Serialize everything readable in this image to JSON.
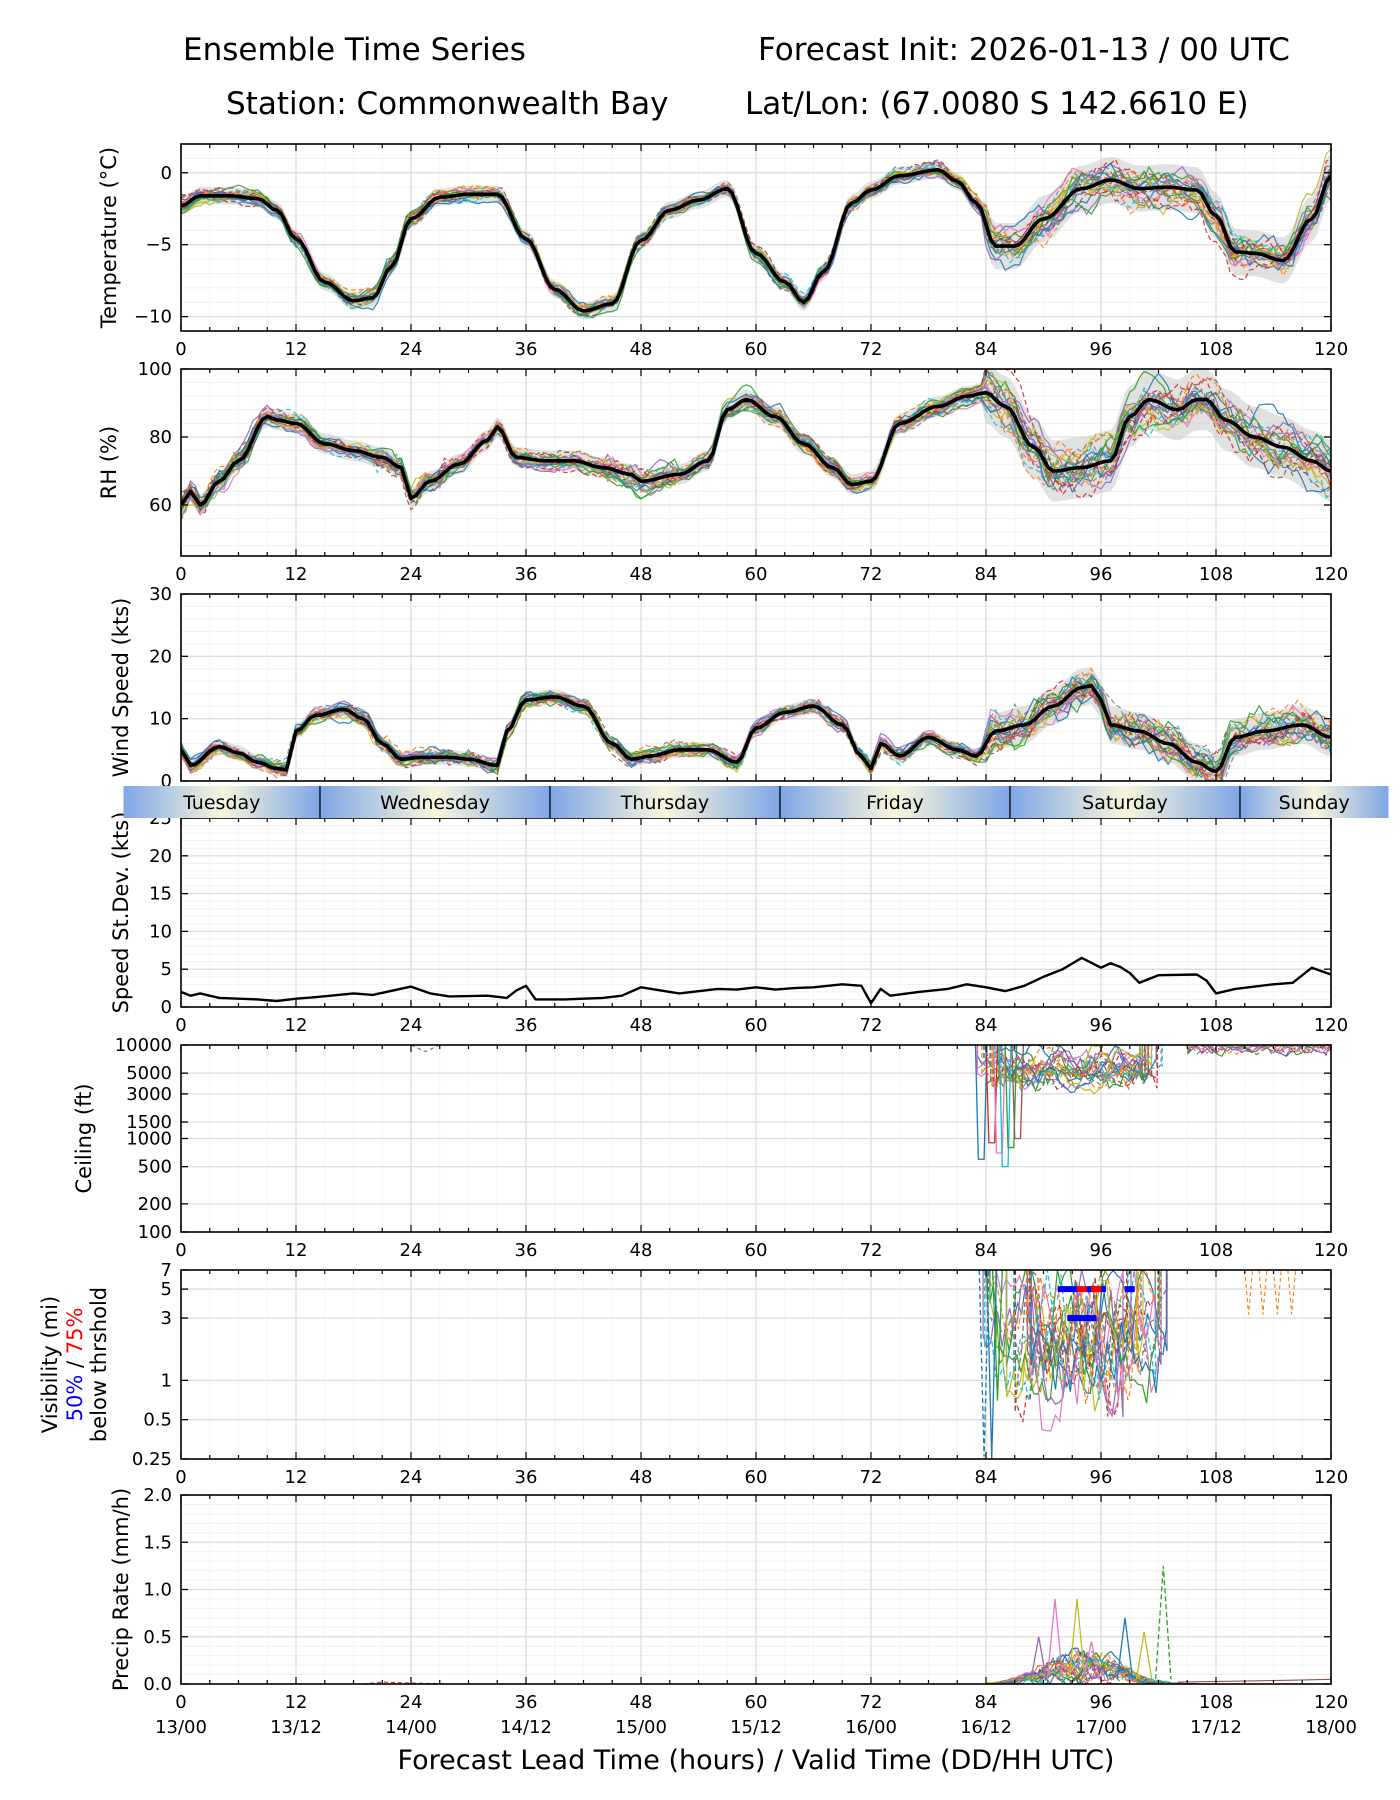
{
  "header": {
    "title": "Ensemble Time Series",
    "init": "Forecast Init: 2026-01-13 / 00 UTC",
    "station": "Station: Commonwealth Bay",
    "latlon": "Lat/Lon: (67.0080 S 142.6610 E)"
  },
  "day_strip": {
    "days": [
      "Tuesday",
      "Wednesday",
      "Thursday",
      "Friday",
      "Saturday",
      "Sunday"
    ]
  },
  "colors": {
    "members": [
      "#1f77b4",
      "#ff7f0e",
      "#2ca02c",
      "#d62728",
      "#9467bd",
      "#8c564b",
      "#e377c2",
      "#7f7f7f",
      "#bcbd22",
      "#17becf"
    ],
    "mean": "#000000",
    "spread": "#c8c8c8",
    "vis50": "#0000ff",
    "vis75": "#ff0000",
    "day_blue": "#7ea6e6",
    "day_cream": "#f8f6dc"
  },
  "chart_data": [
    {
      "id": "temperature",
      "type": "line",
      "title": "",
      "ylabel": "Temperature (°C)",
      "xlabel": "",
      "xlim": [
        0,
        120
      ],
      "ylim": [
        -11,
        2
      ],
      "yticks": [
        0,
        -5,
        -10
      ],
      "ytick_labels": [
        "0",
        "−5",
        "−10"
      ],
      "xticks": [
        0,
        12,
        24,
        36,
        48,
        60,
        72,
        84,
        96,
        108,
        120
      ],
      "xtick_labels": [
        "0",
        "12",
        "24",
        "36",
        "48",
        "60",
        "72",
        "84",
        "96",
        "108",
        "120"
      ],
      "mean_series": {
        "x": [
          0,
          2,
          5,
          8,
          10,
          12,
          15,
          18,
          20,
          22,
          24,
          27,
          30,
          33,
          36,
          39,
          42,
          45,
          48,
          51,
          54,
          57,
          60,
          63,
          65,
          67,
          70,
          72,
          75,
          79,
          81,
          83,
          85,
          87,
          90,
          94,
          97,
          100,
          103,
          106,
          108,
          110,
          112,
          115,
          118,
          120
        ],
        "y": [
          -2.3,
          -1.6,
          -1.6,
          -1.8,
          -2.6,
          -4.6,
          -7.6,
          -8.9,
          -8.7,
          -6.5,
          -3.2,
          -1.7,
          -1.5,
          -1.5,
          -4.6,
          -8.1,
          -9.6,
          -9.1,
          -4.7,
          -2.6,
          -1.9,
          -1.1,
          -5.6,
          -7.6,
          -9.0,
          -6.9,
          -2.1,
          -1.2,
          -0.2,
          0.2,
          -0.6,
          -2.1,
          -5.1,
          -5.1,
          -3.2,
          -1.1,
          -0.5,
          -1.1,
          -1.0,
          -1.2,
          -3.0,
          -5.5,
          -5.6,
          -6.1,
          -3.2,
          -0.2
        ]
      },
      "spread": 0.6,
      "spread_wide_from": 84,
      "spread_wide": 1.6
    },
    {
      "id": "rh",
      "type": "line",
      "title": "",
      "ylabel": "RH (%)",
      "xlabel": "",
      "xlim": [
        0,
        120
      ],
      "ylim": [
        45,
        100
      ],
      "yticks": [
        60,
        80,
        100
      ],
      "ytick_labels": [
        "60",
        "80",
        "100"
      ],
      "xticks": [
        0,
        12,
        24,
        36,
        48,
        60,
        72,
        84,
        96,
        108,
        120
      ],
      "xtick_labels": [
        "0",
        "12",
        "24",
        "36",
        "48",
        "60",
        "72",
        "84",
        "96",
        "108",
        "120"
      ],
      "mean_series": {
        "x": [
          0,
          1,
          2,
          4,
          6,
          9,
          10,
          12,
          15,
          18,
          21,
          23,
          24,
          26,
          29,
          32,
          33,
          35,
          38,
          41,
          44,
          47,
          48,
          52,
          55,
          57,
          59,
          62,
          65,
          68,
          70,
          72,
          75,
          79,
          82,
          84,
          86,
          89,
          91,
          94,
          97,
          99,
          101,
          104,
          106,
          107,
          109,
          112,
          115,
          118,
          120
        ],
        "y": [
          60,
          64,
          60,
          67,
          73,
          86,
          85,
          84,
          78,
          76,
          74,
          71,
          62,
          67,
          72,
          79,
          83,
          74,
          73,
          73,
          71,
          69,
          67,
          69,
          73,
          88,
          91,
          86,
          78,
          71,
          66,
          67,
          84,
          89,
          92,
          93,
          89,
          77,
          70,
          71,
          73,
          86,
          91,
          88,
          91,
          91,
          85,
          80,
          77,
          73,
          70
        ]
      },
      "spread": 3,
      "spread_wide_from": 84,
      "spread_wide": 9
    },
    {
      "id": "wind",
      "type": "line",
      "title": "",
      "ylabel": "Wind Speed (kts)",
      "xlabel": "",
      "xlim": [
        0,
        120
      ],
      "ylim": [
        0,
        30
      ],
      "yticks": [
        0,
        10,
        20,
        30
      ],
      "ytick_labels": [
        "0",
        "10",
        "20",
        "30"
      ],
      "xticks": [
        0,
        12,
        24,
        36,
        48,
        60,
        72,
        84,
        96,
        108,
        120
      ],
      "xtick_labels": [
        "0",
        "12",
        "24",
        "36",
        "48",
        "60",
        "72",
        "84",
        "96",
        "108",
        "120"
      ],
      "mean_series": {
        "x": [
          0,
          1,
          4,
          6,
          8,
          10,
          11,
          12,
          14,
          17,
          19,
          21,
          23,
          25,
          28,
          30,
          33,
          34,
          36,
          39,
          42,
          45,
          47,
          49,
          52,
          55,
          58,
          60,
          63,
          66,
          69,
          71,
          72,
          73,
          75,
          78,
          81,
          83,
          85,
          88,
          91,
          94,
          95,
          96,
          97,
          100,
          103,
          106,
          108,
          110,
          113,
          117,
          120
        ],
        "y": [
          5,
          2.5,
          5.5,
          4.5,
          3,
          2,
          1.8,
          8,
          10.5,
          11.5,
          10,
          6,
          3.5,
          3.8,
          3.8,
          3.5,
          2.5,
          8,
          13,
          13.5,
          12,
          6,
          3.5,
          4,
          5,
          5,
          3,
          8.5,
          11,
          12,
          9,
          4,
          2,
          6,
          4,
          7,
          5,
          4,
          8,
          9,
          12,
          15,
          15.3,
          13,
          9,
          8,
          6,
          3,
          1.5,
          7,
          8,
          9,
          7
        ]
      },
      "spread": 1.2,
      "spread_wide_from": 84,
      "spread_wide": 3
    },
    {
      "id": "speed_stdev",
      "type": "line",
      "title": "",
      "ylabel": "Speed St.Dev. (kts)",
      "xlabel": "",
      "xlim": [
        0,
        120
      ],
      "ylim": [
        0,
        25
      ],
      "yticks": [
        0,
        5,
        10,
        15,
        20,
        25
      ],
      "ytick_labels": [
        "0",
        "5",
        "10",
        "15",
        "20",
        "25"
      ],
      "xticks": [
        0,
        12,
        24,
        36,
        48,
        60,
        72,
        84,
        96,
        108,
        120
      ],
      "xtick_labels": [
        "0",
        "12",
        "24",
        "36",
        "48",
        "60",
        "72",
        "84",
        "96",
        "108",
        "120"
      ],
      "mean_series": {
        "x": [
          0,
          1,
          2,
          4,
          8,
          10,
          12,
          14,
          18,
          20,
          24,
          26,
          28,
          32,
          34,
          35,
          36,
          37,
          40,
          44,
          46,
          48,
          52,
          56,
          58,
          60,
          62,
          64,
          66,
          69,
          71,
          72,
          73,
          74,
          77,
          80,
          82,
          84,
          86,
          88,
          90,
          92,
          94,
          96,
          97,
          98,
          99,
          100,
          102,
          106,
          107,
          108,
          110,
          114,
          116,
          118,
          120
        ],
        "y": [
          2,
          1.5,
          1.8,
          1.2,
          1,
          0.8,
          1.1,
          1.3,
          1.8,
          1.6,
          2.7,
          1.8,
          1.4,
          1.5,
          1.2,
          2.2,
          2.8,
          1,
          1,
          1.2,
          1.5,
          2.6,
          1.8,
          2.4,
          2.3,
          2.6,
          2.3,
          2.5,
          2.6,
          3,
          2.8,
          0.5,
          2.4,
          1.5,
          2,
          2.4,
          3,
          2.6,
          2.1,
          2.8,
          4,
          5,
          6.5,
          5.2,
          5.8,
          5.3,
          4.5,
          3.2,
          4.2,
          4.3,
          3.5,
          1.8,
          2.4,
          3,
          3.2,
          5.2,
          4.3
        ]
      }
    },
    {
      "id": "ceiling",
      "type": "line",
      "scale": "log",
      "title": "",
      "ylabel": "Ceiling (ft)",
      "xlabel": "",
      "xlim": [
        0,
        120
      ],
      "ylim": [
        100,
        10000
      ],
      "yticks": [
        100,
        200,
        500,
        1000,
        1500,
        3000,
        5000,
        10000
      ],
      "ytick_labels": [
        "100",
        "200",
        "500",
        "1000",
        "1500",
        "3000",
        "5000",
        "10000"
      ],
      "xticks": [
        0,
        12,
        24,
        36,
        48,
        60,
        72,
        84,
        96,
        108,
        120
      ],
      "xtick_labels": [
        "0",
        "12",
        "24",
        "36",
        "48",
        "60",
        "72",
        "84",
        "96",
        "108",
        "120"
      ],
      "members_from": 83,
      "band_low": 3500,
      "band_high": 9500,
      "dips": [
        [
          83.5,
          600
        ],
        [
          84.6,
          900
        ],
        [
          85.4,
          700
        ],
        [
          86,
          500
        ],
        [
          86.6,
          800
        ],
        [
          87.3,
          1000
        ]
      ]
    },
    {
      "id": "visibility",
      "type": "line",
      "scale": "log",
      "title": "",
      "ylabel": "Visibility (mi)",
      "ylabel_50": "50%",
      "ylabel_sep": " / ",
      "ylabel_75": "75%",
      "ylabel_sub": "below thrshold",
      "xlabel": "",
      "xlim": [
        0,
        120
      ],
      "ylim": [
        0.25,
        7
      ],
      "yticks": [
        0.25,
        0.5,
        1,
        3,
        5,
        7
      ],
      "ytick_labels": [
        "0.25",
        "0.5",
        "1",
        "3",
        "5",
        "7"
      ],
      "xticks": [
        0,
        12,
        24,
        36,
        48,
        60,
        72,
        84,
        96,
        108,
        120
      ],
      "xtick_labels": [
        "0",
        "12",
        "24",
        "36",
        "48",
        "60",
        "72",
        "84",
        "96",
        "108",
        "120"
      ],
      "members_from": 83,
      "markers_50": [
        [
          92,
          5
        ],
        [
          93,
          5
        ],
        [
          95,
          5
        ],
        [
          96,
          5
        ],
        [
          99,
          5
        ],
        [
          93,
          3
        ],
        [
          94,
          3
        ],
        [
          95,
          3
        ]
      ],
      "markers_75": [
        [
          94,
          5
        ],
        [
          95.5,
          5
        ]
      ]
    },
    {
      "id": "precip",
      "type": "line",
      "title": "",
      "ylabel": "Precip Rate (mm/h)",
      "xlabel": "Forecast Lead Time (hours) / Valid Time (DD/HH UTC)",
      "xlim": [
        0,
        120
      ],
      "ylim": [
        0,
        2.0
      ],
      "yticks": [
        0,
        0.5,
        1.0,
        1.5,
        2.0
      ],
      "ytick_labels": [
        "0.0",
        "0.5",
        "1.0",
        "1.5",
        "2.0"
      ],
      "xticks": [
        0,
        12,
        24,
        36,
        48,
        60,
        72,
        84,
        96,
        108,
        120
      ],
      "xtick_labels": [
        "0",
        "12",
        "24",
        "36",
        "48",
        "60",
        "72",
        "84",
        "96",
        "108",
        "120"
      ],
      "valid_time_labels": [
        "13/00",
        "13/12",
        "14/00",
        "14/12",
        "15/00",
        "15/12",
        "16/00",
        "16/12",
        "17/00",
        "17/12",
        "18/00"
      ],
      "peaks": [
        [
          91.2,
          0.9
        ],
        [
          93.5,
          0.9
        ],
        [
          98.5,
          0.7
        ],
        [
          102.5,
          1.25
        ],
        [
          89.5,
          0.5
        ],
        [
          95,
          0.45
        ],
        [
          100.5,
          0.55
        ]
      ]
    }
  ]
}
